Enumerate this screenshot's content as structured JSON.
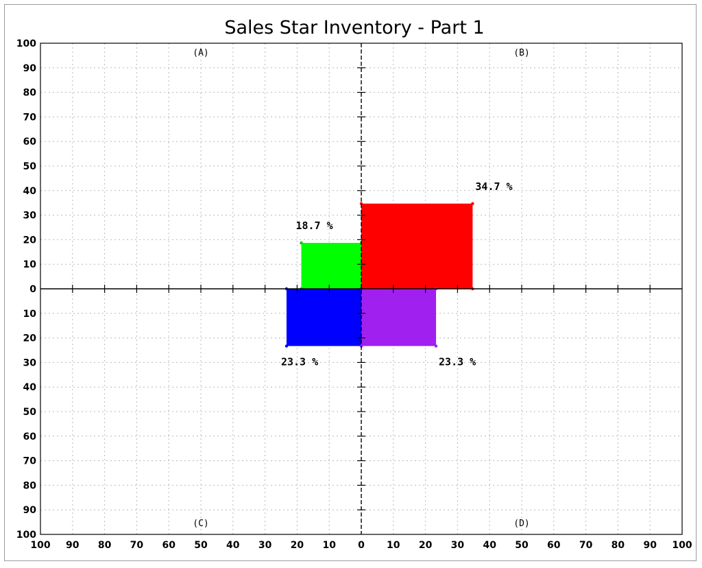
{
  "chart_data": {
    "type": "quadrant-bar",
    "title": "Sales Star Inventory - Part 1",
    "axis_range": [
      0,
      100
    ],
    "grid": true,
    "x_tick_labels": [
      "100",
      "90",
      "80",
      "70",
      "60",
      "50",
      "40",
      "30",
      "20",
      "10",
      "0",
      "10",
      "20",
      "30",
      "40",
      "50",
      "60",
      "70",
      "80",
      "90",
      "100"
    ],
    "y_tick_labels": [
      "100",
      "90",
      "80",
      "70",
      "60",
      "50",
      "40",
      "30",
      "20",
      "10",
      "0",
      "10",
      "20",
      "30",
      "40",
      "50",
      "60",
      "70",
      "80",
      "90",
      "100"
    ],
    "quadrant_labels": [
      {
        "id": "A",
        "text": "(A)"
      },
      {
        "id": "B",
        "text": "(B)"
      },
      {
        "id": "C",
        "text": "(C)"
      },
      {
        "id": "D",
        "text": "(D)"
      }
    ],
    "series": [
      {
        "quadrant": "A",
        "value": 18.7,
        "label": "18.7 %",
        "color": "#00ff00"
      },
      {
        "quadrant": "B",
        "value": 34.7,
        "label": "34.7 %",
        "color": "#ff0000"
      },
      {
        "quadrant": "C",
        "value": 23.3,
        "label": "23.3 %",
        "color": "#0000ff"
      },
      {
        "quadrant": "D",
        "value": 23.3,
        "label": "23.3 %",
        "color": "#a020f0"
      }
    ]
  }
}
